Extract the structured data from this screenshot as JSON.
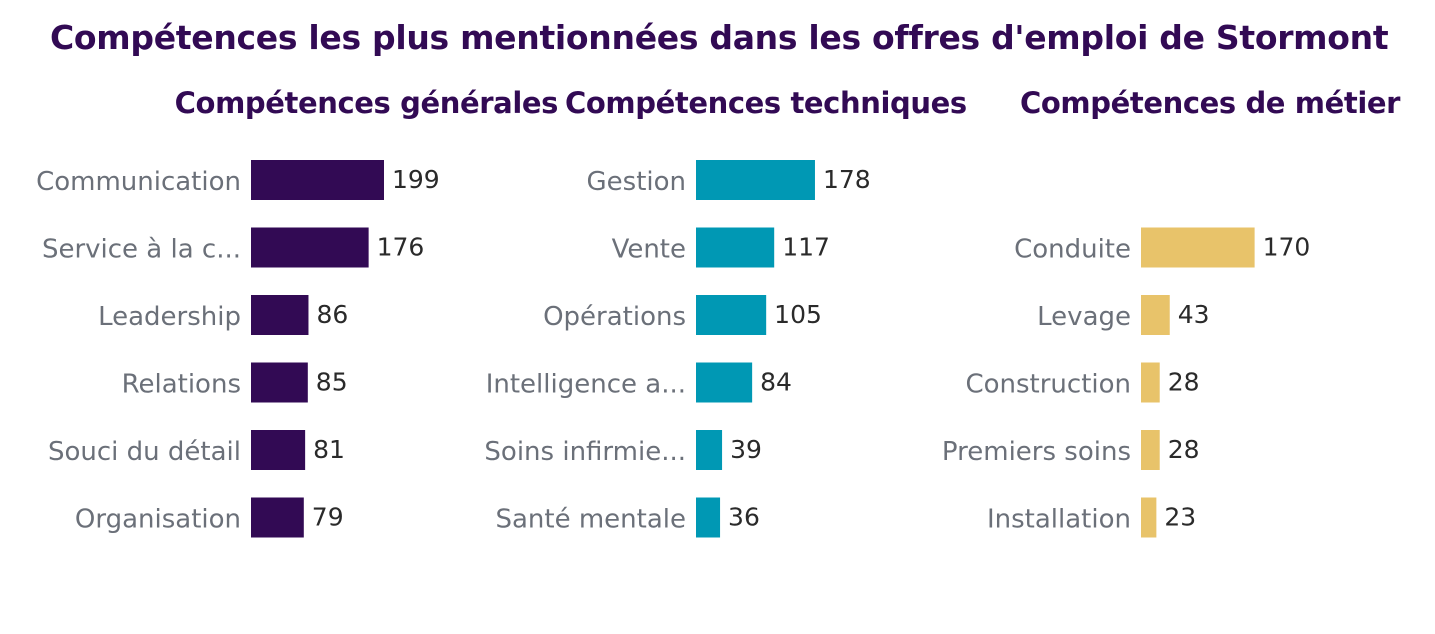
{
  "chart_data": {
    "type": "bar",
    "orientation": "horizontal",
    "title": "Compétences les plus mentionnées dans les offres d'emploi de Stormont",
    "panels": [
      {
        "title": "Compétences générales",
        "color": "#320a54",
        "categories": [
          "Communication",
          "Service à la c...",
          "Leadership",
          "Relations",
          "Souci du détail",
          "Organisation"
        ],
        "values": [
          199,
          176,
          86,
          85,
          81,
          79
        ]
      },
      {
        "title": "Compétences techniques",
        "color": "#0098b4",
        "categories": [
          "Gestion",
          "Vente",
          "Opérations",
          "Intelligence a...",
          "Soins infirmie...",
          "Santé mentale"
        ],
        "values": [
          178,
          117,
          105,
          84,
          39,
          36
        ]
      },
      {
        "title": "Compétences de métier",
        "color": "#e8c36a",
        "categories": [
          "",
          "Conduite",
          "Levage",
          "Construction",
          "Premiers soins",
          "Installation"
        ],
        "values": [
          null,
          170,
          43,
          28,
          28,
          23
        ]
      }
    ],
    "xlim": [
      0,
      199
    ],
    "grid": false,
    "legend": "none"
  }
}
